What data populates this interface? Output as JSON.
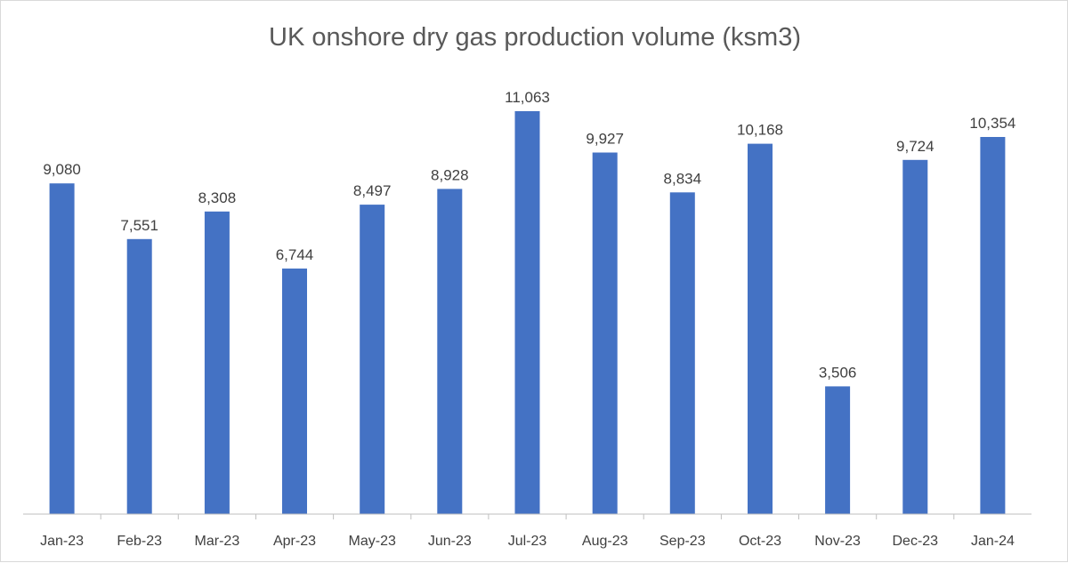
{
  "chart_data": {
    "type": "bar",
    "title": "UK onshore dry gas production volume (ksm3)",
    "categories": [
      "Jan-23",
      "Feb-23",
      "Mar-23",
      "Apr-23",
      "May-23",
      "Jun-23",
      "Jul-23",
      "Aug-23",
      "Sep-23",
      "Oct-23",
      "Nov-23",
      "Dec-23",
      "Jan-24"
    ],
    "series": [
      {
        "values": [
          9080,
          7551,
          8308,
          6744,
          8497,
          8928,
          11063,
          9927,
          8834,
          10168,
          3506,
          9724,
          10354
        ],
        "labels": [
          "9,080",
          "7,551",
          "8,308",
          "6,744",
          "8,497",
          "8,928",
          "11,063",
          "9,927",
          "8,834",
          "10,168",
          "3,506",
          "9,724",
          "10,354"
        ],
        "color": "#4472c4"
      }
    ],
    "ylim": [
      0,
      12000
    ],
    "grid": false,
    "legend": "none"
  }
}
